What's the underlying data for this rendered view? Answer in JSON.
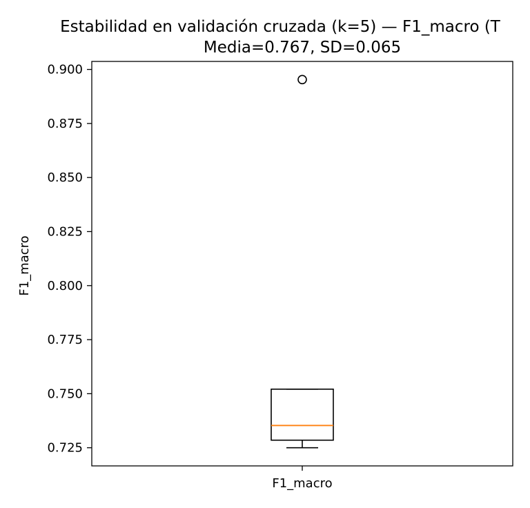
{
  "chart_data": {
    "type": "box",
    "title": "Estabilidad en validación cruzada (k=5) — F1_macro (T",
    "subtitle": "Media=0.767, SD=0.065",
    "xlabel": "",
    "ylabel": "F1_macro",
    "categories": [
      "F1_macro"
    ],
    "ylim": [
      0.7166,
      0.9037
    ],
    "yticks": [
      0.725,
      0.75,
      0.775,
      0.8,
      0.825,
      0.85,
      0.875,
      0.9
    ],
    "ytick_labels": [
      "0.725",
      "0.750",
      "0.775",
      "0.800",
      "0.825",
      "0.850",
      "0.875",
      "0.900"
    ],
    "grid": false,
    "box": {
      "whisker_low": 0.725,
      "q1": 0.7285,
      "median": 0.7353,
      "q3": 0.7521,
      "whisker_high": 0.7521,
      "outliers": [
        0.8953
      ]
    },
    "colors": {
      "box": "#000000",
      "median": "#ff7f0e",
      "background": "#ffffff"
    }
  }
}
